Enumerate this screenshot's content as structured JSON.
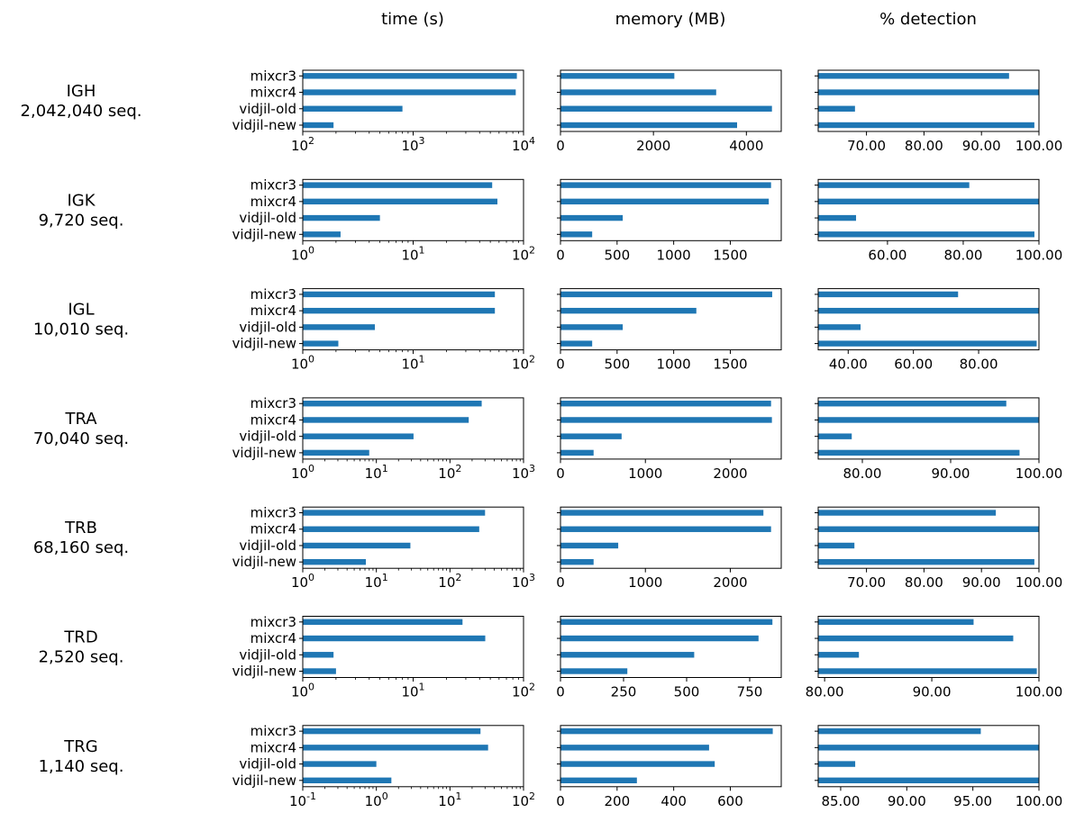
{
  "figure": {
    "column_titles": [
      "time (s)",
      "memory (MB)",
      "% detection"
    ],
    "bar_color": "#1f77b4"
  },
  "chart_data": {
    "type": "bar",
    "orientation": "horizontal",
    "categories": [
      "mixcr3",
      "mixcr4",
      "vidjil-old",
      "vidjil-new"
    ],
    "rows": [
      {
        "name": "IGH",
        "count": "2,042,040 seq.",
        "time": {
          "scale": "log",
          "xlim": [
            100,
            10000
          ],
          "ticks": [
            100,
            1000,
            10000
          ],
          "values": [
            8700,
            8500,
            800,
            190
          ]
        },
        "memory": {
          "scale": "linear",
          "xlim": [
            0,
            4750
          ],
          "ticks": [
            0,
            2000,
            4000
          ],
          "values": [
            2450,
            3350,
            4550,
            3800
          ]
        },
        "detection": {
          "scale": "linear",
          "xlim": [
            61.6,
            100
          ],
          "ticks": [
            70,
            80,
            90,
            100
          ],
          "values": [
            94.8,
            100,
            68.0,
            99.2
          ]
        }
      },
      {
        "name": "IGK",
        "count": "9,720 seq.",
        "time": {
          "scale": "log",
          "xlim": [
            1,
            100
          ],
          "ticks": [
            1,
            10,
            100
          ],
          "values": [
            52,
            58,
            5.0,
            2.2
          ]
        },
        "memory": {
          "scale": "linear",
          "xlim": [
            0,
            1950
          ],
          "ticks": [
            0,
            500,
            1000,
            1500
          ],
          "values": [
            1860,
            1840,
            550,
            280
          ]
        },
        "detection": {
          "scale": "linear",
          "xlim": [
            41.7,
            100
          ],
          "ticks": [
            60,
            80,
            100
          ],
          "values": [
            81.6,
            100,
            51.7,
            98.8
          ]
        }
      },
      {
        "name": "IGL",
        "count": "10,010 seq.",
        "time": {
          "scale": "log",
          "xlim": [
            1,
            100
          ],
          "ticks": [
            1,
            10,
            100
          ],
          "values": [
            55,
            55,
            4.5,
            2.1
          ]
        },
        "memory": {
          "scale": "linear",
          "xlim": [
            0,
            1950
          ],
          "ticks": [
            0,
            500,
            1000,
            1500
          ],
          "values": [
            1870,
            1200,
            550,
            280
          ]
        },
        "detection": {
          "scale": "linear",
          "xlim": [
            30.8,
            98.5
          ],
          "ticks": [
            40,
            60,
            80
          ],
          "values": [
            73.7,
            100,
            43.8,
            97.8
          ]
        }
      },
      {
        "name": "TRA",
        "count": "70,040 seq.",
        "time": {
          "scale": "log",
          "xlim": [
            1,
            1000
          ],
          "ticks": [
            1,
            10,
            100,
            1000
          ],
          "values": [
            270,
            180,
            32,
            8.0
          ]
        },
        "memory": {
          "scale": "linear",
          "xlim": [
            0,
            2600
          ],
          "ticks": [
            0,
            1000,
            2000
          ],
          "values": [
            2480,
            2490,
            720,
            390
          ]
        },
        "detection": {
          "scale": "linear",
          "xlim": [
            75,
            100
          ],
          "ticks": [
            80,
            90,
            100
          ],
          "values": [
            96.3,
            100,
            78.8,
            97.8
          ]
        }
      },
      {
        "name": "TRB",
        "count": "68,160 seq.",
        "time": {
          "scale": "log",
          "xlim": [
            1,
            1000
          ],
          "ticks": [
            1,
            10,
            100,
            1000
          ],
          "values": [
            300,
            250,
            29,
            7.2
          ]
        },
        "memory": {
          "scale": "linear",
          "xlim": [
            0,
            2600
          ],
          "ticks": [
            0,
            1000,
            2000
          ],
          "values": [
            2390,
            2480,
            680,
            390
          ]
        },
        "detection": {
          "scale": "linear",
          "xlim": [
            61.6,
            100
          ],
          "ticks": [
            70,
            80,
            90,
            100
          ],
          "values": [
            92.5,
            100,
            67.9,
            99.2
          ]
        }
      },
      {
        "name": "TRD",
        "count": "2,520 seq.",
        "time": {
          "scale": "log",
          "xlim": [
            1,
            100
          ],
          "ticks": [
            1,
            10,
            100
          ],
          "values": [
            28,
            45,
            1.9,
            2.0
          ]
        },
        "memory": {
          "scale": "linear",
          "xlim": [
            0,
            875
          ],
          "ticks": [
            0,
            250,
            500,
            750
          ],
          "values": [
            840,
            785,
            530,
            265
          ]
        },
        "detection": {
          "scale": "linear",
          "xlim": [
            79.4,
            100
          ],
          "ticks": [
            80,
            90,
            100
          ],
          "values": [
            93.9,
            97.6,
            83.2,
            99.8
          ]
        }
      },
      {
        "name": "TRG",
        "count": "1,140 seq.",
        "time": {
          "scale": "log",
          "xlim": [
            0.1,
            100
          ],
          "ticks": [
            0.1,
            1,
            10,
            100
          ],
          "values": [
            26,
            33,
            1.0,
            1.6
          ]
        },
        "memory": {
          "scale": "linear",
          "xlim": [
            0,
            780
          ],
          "ticks": [
            0,
            200,
            400,
            600
          ],
          "values": [
            750,
            525,
            545,
            270
          ]
        },
        "detection": {
          "scale": "linear",
          "xlim": [
            83.3,
            100
          ],
          "ticks": [
            85,
            90,
            95,
            100
          ],
          "values": [
            95.6,
            100,
            86.1,
            100
          ]
        }
      }
    ]
  }
}
